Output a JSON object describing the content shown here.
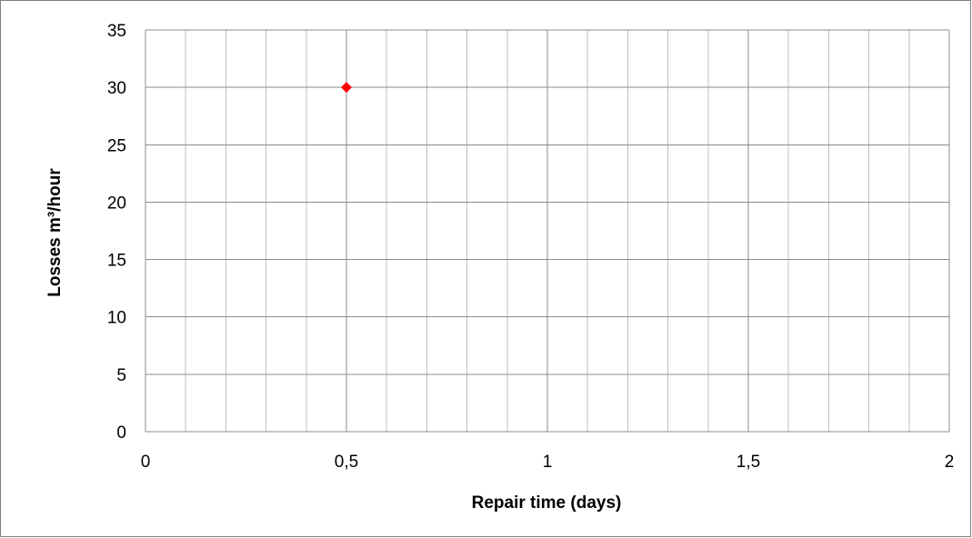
{
  "chart_data": {
    "type": "scatter",
    "title": "",
    "xlabel": "Repair time (days)",
    "ylabel": "Losses m³/hour",
    "xlim": [
      0,
      2
    ],
    "ylim": [
      0,
      35
    ],
    "x_major_ticks": [
      "0",
      "0,5",
      "1",
      "1,5",
      "2"
    ],
    "y_major_ticks": [
      "0",
      "5",
      "10",
      "15",
      "20",
      "25",
      "30",
      "35"
    ],
    "x_minor_step": 0.1,
    "grid": true,
    "legend": "none",
    "series": [
      {
        "points": [
          {
            "x": 0.5,
            "y": 30
          }
        ],
        "marker": "diamond",
        "color": "#ff0000"
      }
    ]
  },
  "colors": {
    "grid_minor": "#bfbfbf",
    "grid_major": "#8c8c8c",
    "frame": "#7f7f7f",
    "marker": "#ff0000"
  }
}
